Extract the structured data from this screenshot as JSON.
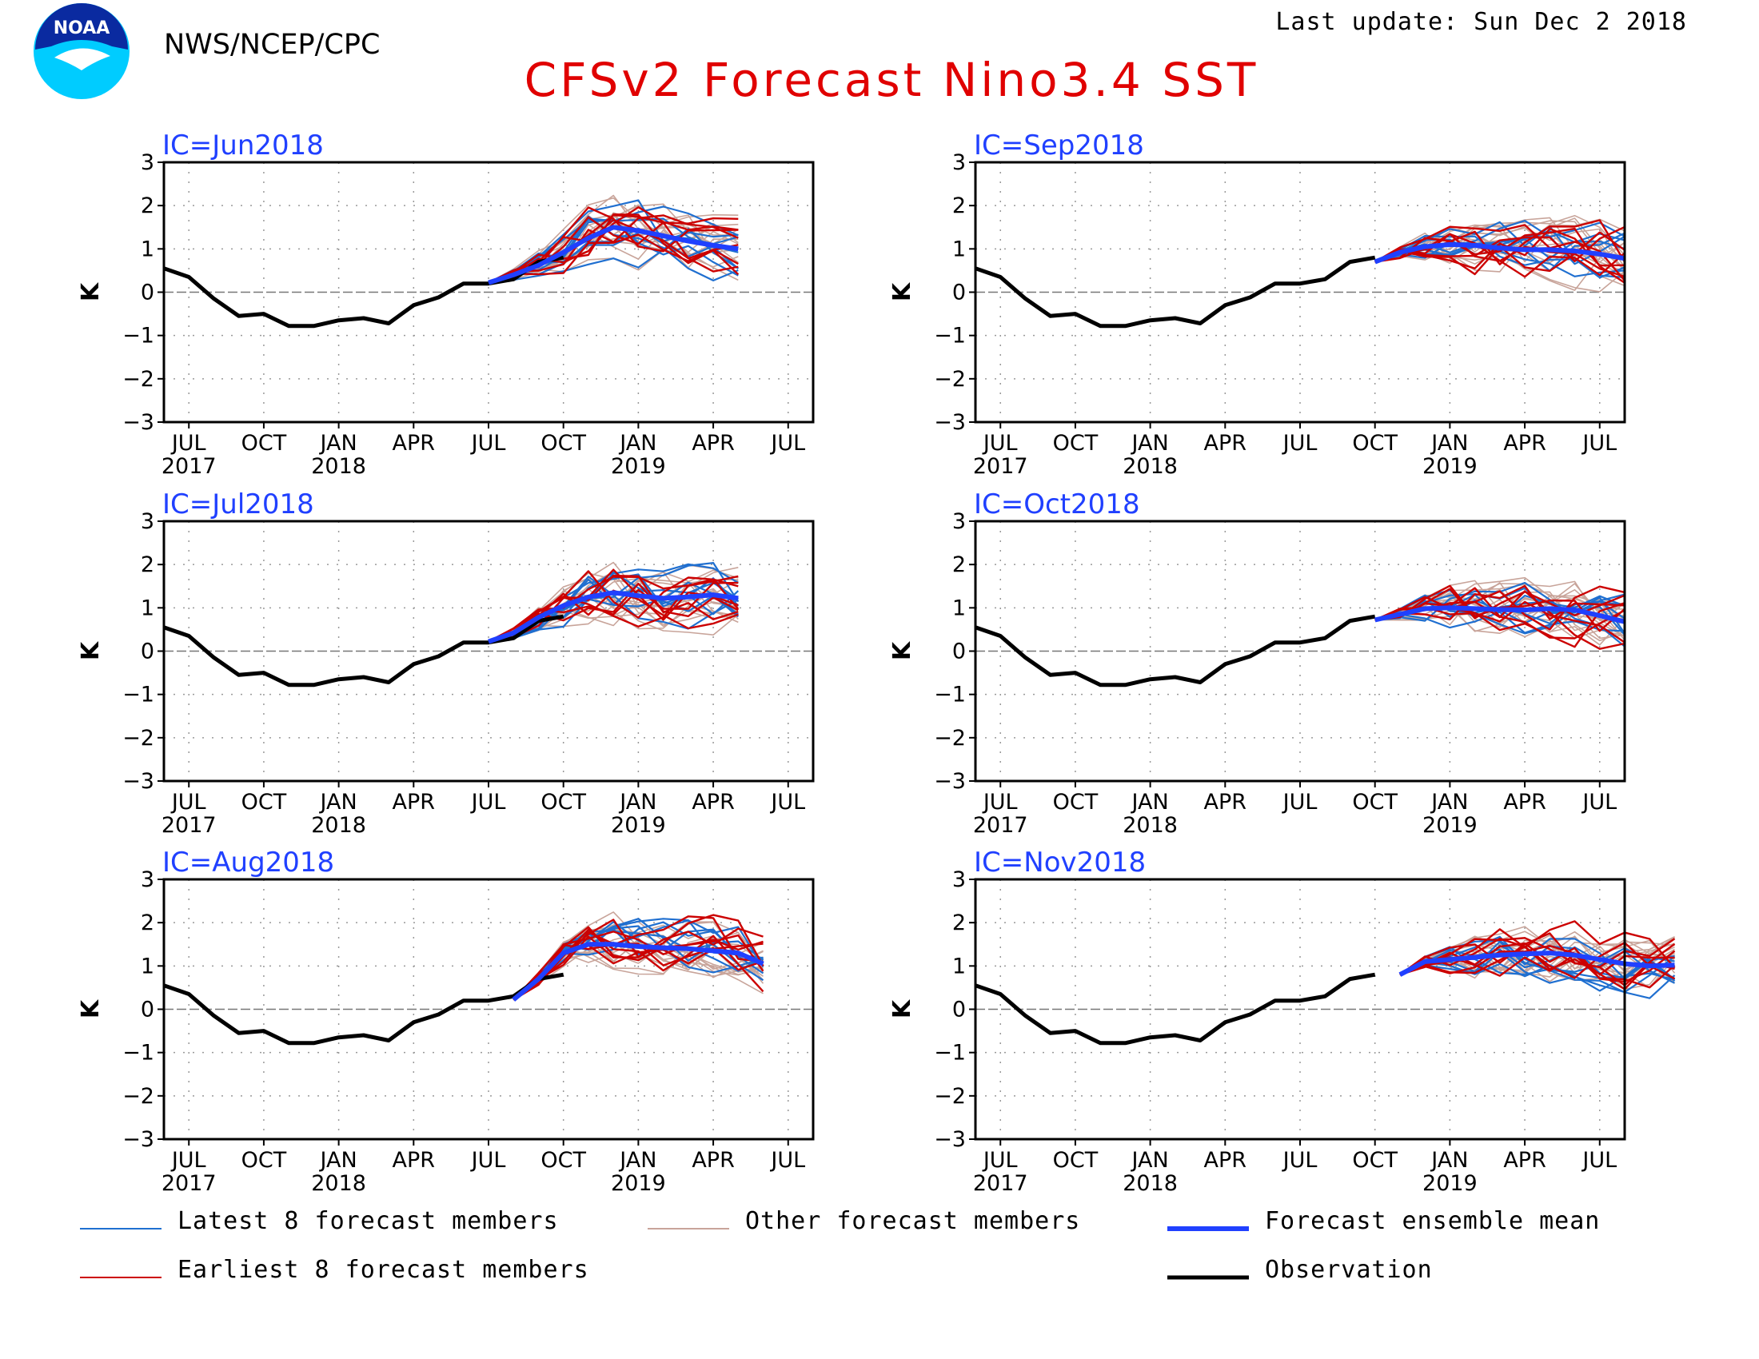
{
  "header": {
    "org": "NWS/NCEP/CPC",
    "title": "CFSv2 Forecast Nino3.4 SST",
    "last_update": "Last update: Sun Dec 2 2018",
    "logo_text": "NOAA"
  },
  "colors": {
    "title": "#e00000",
    "panel_title": "#2040ff",
    "latest": "#1f6fd0",
    "earliest": "#cc0000",
    "other": "#c8a49a",
    "mean": "#2040ff",
    "observation": "#000000"
  },
  "legend": [
    {
      "key": "latest",
      "label": "Latest 8 forecast members"
    },
    {
      "key": "other",
      "label": "Other forecast members"
    },
    {
      "key": "mean",
      "label": "Forecast ensemble mean"
    },
    {
      "key": "earliest",
      "label": "Earliest 8 forecast members"
    },
    {
      "key": "observation",
      "label": "Observation"
    }
  ],
  "chart_data": {
    "type": "line",
    "ylabel": "K",
    "ylim": [
      -3,
      3
    ],
    "yticks": [
      -3,
      -2,
      -1,
      0,
      1,
      2,
      3
    ],
    "xlim": [
      "2017-06",
      "2019-08"
    ],
    "xticks": [
      {
        "month": "2017-07",
        "label": "JUL",
        "year": "2017"
      },
      {
        "month": "2017-10",
        "label": "OCT",
        "year": ""
      },
      {
        "month": "2018-01",
        "label": "JAN",
        "year": "2018"
      },
      {
        "month": "2018-04",
        "label": "APR",
        "year": ""
      },
      {
        "month": "2018-07",
        "label": "JUL",
        "year": ""
      },
      {
        "month": "2018-10",
        "label": "OCT",
        "year": ""
      },
      {
        "month": "2019-01",
        "label": "JAN",
        "year": "2019"
      },
      {
        "month": "2019-04",
        "label": "APR",
        "year": ""
      },
      {
        "month": "2019-07",
        "label": "JUL",
        "year": ""
      }
    ],
    "observation": {
      "start": "2017-06",
      "values": [
        0.55,
        0.35,
        -0.15,
        -0.55,
        -0.5,
        -0.78,
        -0.78,
        -0.65,
        -0.6,
        -0.72,
        -0.3,
        -0.12,
        0.2,
        0.2,
        0.3,
        0.7,
        0.8
      ]
    },
    "panels": [
      {
        "ic": "IC=Jun2018",
        "ic_month": "2018-06",
        "mean": {
          "start": "2018-07",
          "values": [
            0.22,
            0.4,
            0.62,
            0.92,
            1.25,
            1.5,
            1.42,
            1.3,
            1.18,
            1.08,
            1.0
          ]
        },
        "obs_months": 17
      },
      {
        "ic": "IC=Sep2018",
        "ic_month": "2018-09",
        "mean": {
          "start": "2018-10",
          "values": [
            0.7,
            0.92,
            1.05,
            1.1,
            1.08,
            1.02,
            0.98,
            0.98,
            0.95,
            0.88,
            0.78
          ]
        },
        "obs_months": 17
      },
      {
        "ic": "IC=Jul2018",
        "ic_month": "2018-07",
        "mean": {
          "start": "2018-07",
          "values": [
            0.22,
            0.42,
            0.78,
            1.05,
            1.25,
            1.35,
            1.28,
            1.22,
            1.25,
            1.3,
            1.22
          ]
        },
        "obs_months": 17
      },
      {
        "ic": "IC=Oct2018",
        "ic_month": "2018-10",
        "mean": {
          "start": "2018-10",
          "values": [
            0.72,
            0.85,
            0.98,
            1.0,
            0.98,
            0.96,
            0.95,
            0.98,
            0.95,
            0.82,
            0.68
          ]
        },
        "obs_months": 17
      },
      {
        "ic": "IC=Aug2018",
        "ic_month": "2018-08",
        "mean": {
          "start": "2018-08",
          "values": [
            0.22,
            0.7,
            1.3,
            1.5,
            1.5,
            1.45,
            1.42,
            1.4,
            1.35,
            1.3,
            1.05
          ]
        },
        "obs_months": 17
      },
      {
        "ic": "IC=Nov2018",
        "ic_month": "2018-11",
        "mean": {
          "start": "2018-11",
          "values": [
            0.8,
            1.1,
            1.15,
            1.2,
            1.25,
            1.28,
            1.3,
            1.25,
            1.15,
            1.05,
            1.0,
            1.02
          ]
        },
        "obs_months": 17
      }
    ]
  }
}
